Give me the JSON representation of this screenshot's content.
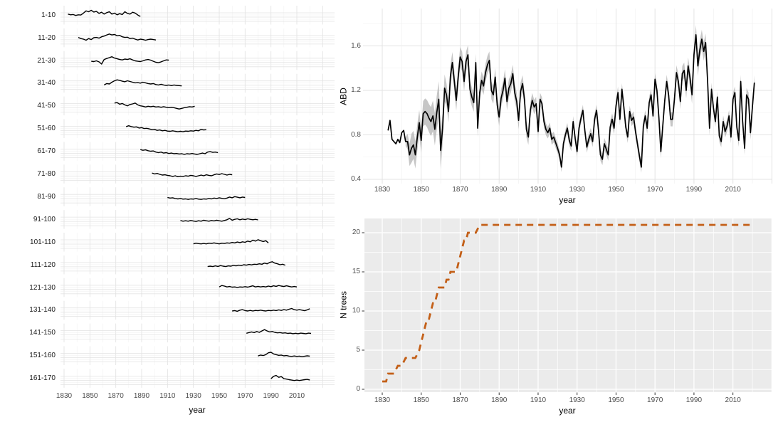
{
  "colors": {
    "background": "#FFFFFF",
    "panel_gray": "#EBEBEB",
    "grid_major_on_white": "#E3E3E3",
    "grid_minor_on_white": "#EFEFEF",
    "grid_on_gray": "#FFFFFF",
    "tick_text": "#4D4D4D",
    "axis_title_text": "#000000",
    "series_black": "#000000",
    "ribbon_gray": "#B3B3B3",
    "ntrees_orange": "#C35F17",
    "tick_mark": "#333333"
  },
  "chart_data": [
    {
      "id": "age_class_facets",
      "type": "line",
      "xlabel": "year",
      "x_ticks": [
        1830,
        1850,
        1870,
        1890,
        1910,
        1930,
        1950,
        1970,
        1990,
        2010
      ],
      "x_grid_range": [
        1830,
        2030
      ],
      "facets": [
        {
          "label": "1-10",
          "start": 1833,
          "step": 2,
          "values": [
            0.55,
            0.5,
            0.52,
            0.45,
            0.5,
            0.48,
            0.62,
            0.78,
            0.72,
            0.82,
            0.7,
            0.75,
            0.6,
            0.68,
            0.55,
            0.65,
            0.72,
            0.55,
            0.62,
            0.5,
            0.58,
            0.52,
            0.72,
            0.6,
            0.55,
            0.68,
            0.62,
            0.48,
            0.38
          ]
        },
        {
          "label": "11-20",
          "start": 1841,
          "step": 2,
          "values": [
            0.5,
            0.42,
            0.38,
            0.3,
            0.42,
            0.35,
            0.48,
            0.5,
            0.45,
            0.55,
            0.6,
            0.68,
            0.75,
            0.68,
            0.72,
            0.62,
            0.65,
            0.55,
            0.5,
            0.52,
            0.42,
            0.45,
            0.38,
            0.32,
            0.38,
            0.35,
            0.3,
            0.35,
            0.38,
            0.35,
            0.32
          ]
        },
        {
          "label": "21-30",
          "start": 1851,
          "step": 2,
          "values": [
            0.42,
            0.4,
            0.45,
            0.38,
            0.22,
            0.55,
            0.62,
            0.68,
            0.75,
            0.65,
            0.6,
            0.55,
            0.52,
            0.58,
            0.55,
            0.6,
            0.52,
            0.45,
            0.42,
            0.4,
            0.45,
            0.52,
            0.55,
            0.5,
            0.42,
            0.35,
            0.32,
            0.38,
            0.45,
            0.52,
            0.5
          ]
        },
        {
          "label": "31-40",
          "start": 1861,
          "step": 2,
          "values": [
            0.35,
            0.45,
            0.42,
            0.55,
            0.65,
            0.72,
            0.68,
            0.62,
            0.58,
            0.65,
            0.6,
            0.55,
            0.5,
            0.52,
            0.48,
            0.55,
            0.5,
            0.45,
            0.42,
            0.45,
            0.38,
            0.35,
            0.4,
            0.35,
            0.32,
            0.35,
            0.3,
            0.35,
            0.32,
            0.3,
            0.28
          ]
        },
        {
          "label": "41-50",
          "start": 1869,
          "step": 2,
          "values": [
            0.68,
            0.72,
            0.6,
            0.65,
            0.55,
            0.48,
            0.58,
            0.62,
            0.68,
            0.55,
            0.48,
            0.45,
            0.4,
            0.45,
            0.42,
            0.45,
            0.4,
            0.42,
            0.38,
            0.42,
            0.38,
            0.35,
            0.38,
            0.35,
            0.3,
            0.25,
            0.3,
            0.35,
            0.38,
            0.42,
            0.4,
            0.45
          ]
        },
        {
          "label": "51-60",
          "start": 1878,
          "step": 2,
          "values": [
            0.62,
            0.68,
            0.62,
            0.58,
            0.6,
            0.52,
            0.55,
            0.48,
            0.5,
            0.45,
            0.4,
            0.42,
            0.35,
            0.38,
            0.32,
            0.35,
            0.3,
            0.28,
            0.32,
            0.28,
            0.25,
            0.28,
            0.25,
            0.3,
            0.28,
            0.32,
            0.3,
            0.35,
            0.32,
            0.42,
            0.38,
            0.4
          ]
        },
        {
          "label": "61-70",
          "start": 1889,
          "step": 2,
          "values": [
            0.6,
            0.55,
            0.58,
            0.52,
            0.48,
            0.5,
            0.42,
            0.38,
            0.42,
            0.35,
            0.38,
            0.32,
            0.35,
            0.3,
            0.32,
            0.28,
            0.3,
            0.25,
            0.3,
            0.28,
            0.32,
            0.28,
            0.25,
            0.3,
            0.35,
            0.3,
            0.42,
            0.45,
            0.4,
            0.42,
            0.38
          ]
        },
        {
          "label": "71-80",
          "start": 1898,
          "step": 2,
          "values": [
            0.55,
            0.48,
            0.52,
            0.45,
            0.4,
            0.42,
            0.38,
            0.35,
            0.3,
            0.35,
            0.28,
            0.32,
            0.3,
            0.35,
            0.32,
            0.38,
            0.35,
            0.3,
            0.35,
            0.4,
            0.35,
            0.42,
            0.38,
            0.35,
            0.42,
            0.48,
            0.44,
            0.5,
            0.45,
            0.4,
            0.45,
            0.42
          ]
        },
        {
          "label": "81-90",
          "start": 1910,
          "step": 2,
          "values": [
            0.42,
            0.38,
            0.4,
            0.35,
            0.32,
            0.35,
            0.3,
            0.32,
            0.28,
            0.32,
            0.3,
            0.35,
            0.3,
            0.28,
            0.32,
            0.3,
            0.35,
            0.32,
            0.38,
            0.35,
            0.4,
            0.36,
            0.33,
            0.38,
            0.45,
            0.4,
            0.48,
            0.44,
            0.4,
            0.45,
            0.42
          ]
        },
        {
          "label": "91-100",
          "start": 1920,
          "step": 2,
          "values": [
            0.4,
            0.35,
            0.38,
            0.35,
            0.4,
            0.36,
            0.33,
            0.38,
            0.35,
            0.42,
            0.38,
            0.35,
            0.4,
            0.37,
            0.42,
            0.38,
            0.35,
            0.4,
            0.45,
            0.55,
            0.42,
            0.48,
            0.52,
            0.45,
            0.5,
            0.46,
            0.52,
            0.48,
            0.45,
            0.48,
            0.44
          ]
        },
        {
          "label": "101-110",
          "start": 1930,
          "step": 2,
          "values": [
            0.35,
            0.4,
            0.37,
            0.35,
            0.38,
            0.35,
            0.4,
            0.38,
            0.42,
            0.38,
            0.35,
            0.4,
            0.38,
            0.42,
            0.4,
            0.45,
            0.42,
            0.48,
            0.44,
            0.5,
            0.46,
            0.55,
            0.5,
            0.62,
            0.55,
            0.65,
            0.58,
            0.52,
            0.58,
            0.42
          ]
        },
        {
          "label": "111-120",
          "start": 1941,
          "step": 2,
          "values": [
            0.35,
            0.38,
            0.35,
            0.4,
            0.36,
            0.42,
            0.38,
            0.35,
            0.4,
            0.38,
            0.44,
            0.4,
            0.45,
            0.42,
            0.48,
            0.45,
            0.5,
            0.47,
            0.52,
            0.5,
            0.55,
            0.52,
            0.6,
            0.55,
            0.65,
            0.7,
            0.6,
            0.55,
            0.48,
            0.52,
            0.45
          ]
        },
        {
          "label": "121-130",
          "start": 1950,
          "step": 2,
          "values": [
            0.52,
            0.62,
            0.58,
            0.52,
            0.55,
            0.5,
            0.52,
            0.48,
            0.52,
            0.5,
            0.54,
            0.5,
            0.55,
            0.6,
            0.52,
            0.56,
            0.52,
            0.55,
            0.52,
            0.58,
            0.54,
            0.6,
            0.56,
            0.62,
            0.58,
            0.55,
            0.6,
            0.56,
            0.52,
            0.55,
            0.52
          ]
        },
        {
          "label": "131-140",
          "start": 1960,
          "step": 2,
          "values": [
            0.42,
            0.45,
            0.4,
            0.48,
            0.52,
            0.45,
            0.42,
            0.46,
            0.42,
            0.46,
            0.44,
            0.48,
            0.44,
            0.42,
            0.46,
            0.44,
            0.48,
            0.45,
            0.5,
            0.46,
            0.52,
            0.48,
            0.55,
            0.6,
            0.52,
            0.48,
            0.52,
            0.48,
            0.44,
            0.5,
            0.58
          ]
        },
        {
          "label": "141-150",
          "start": 1971,
          "step": 2,
          "values": [
            0.45,
            0.5,
            0.55,
            0.5,
            0.58,
            0.52,
            0.62,
            0.72,
            0.62,
            0.55,
            0.58,
            0.52,
            0.48,
            0.5,
            0.46,
            0.48,
            0.44,
            0.46,
            0.42,
            0.45,
            0.42,
            0.46,
            0.44,
            0.42,
            0.46,
            0.44
          ]
        },
        {
          "label": "151-160",
          "start": 1980,
          "step": 2,
          "values": [
            0.45,
            0.52,
            0.48,
            0.55,
            0.68,
            0.72,
            0.6,
            0.55,
            0.5,
            0.52,
            0.46,
            0.48,
            0.44,
            0.42,
            0.45,
            0.42,
            0.44,
            0.4,
            0.43,
            0.46,
            0.44
          ]
        },
        {
          "label": "161-170",
          "start": 1990,
          "step": 2,
          "values": [
            0.45,
            0.62,
            0.68,
            0.55,
            0.6,
            0.45,
            0.42,
            0.38,
            0.35,
            0.32,
            0.35,
            0.32,
            0.35,
            0.38,
            0.4,
            0.36
          ]
        }
      ]
    },
    {
      "id": "abd",
      "type": "line",
      "ylabel": "ABD",
      "xlabel": "year",
      "y_ticks": [
        0.4,
        0.8,
        1.2,
        1.6
      ],
      "y_grid_range": [
        0.4,
        1.8
      ],
      "y_range": [
        0.36,
        1.94
      ],
      "x_ticks": [
        1830,
        1850,
        1870,
        1890,
        1910,
        1930,
        1950,
        1970,
        1990,
        2010
      ],
      "x_grid_range": [
        1830,
        2030
      ],
      "series": {
        "start_year": 1833,
        "values": [
          0.84,
          0.93,
          0.76,
          0.74,
          0.72,
          0.76,
          0.73,
          0.82,
          0.84,
          0.74,
          0.74,
          0.62,
          0.68,
          0.71,
          0.62,
          0.78,
          0.91,
          0.75,
          0.99,
          1.01,
          0.99,
          0.95,
          0.92,
          0.97,
          0.85,
          1.0,
          1.12,
          0.66,
          0.86,
          1.22,
          1.16,
          1.01,
          1.33,
          1.45,
          1.28,
          1.11,
          1.32,
          1.5,
          1.46,
          1.28,
          1.46,
          1.52,
          1.21,
          1.14,
          1.09,
          1.45,
          0.86,
          1.18,
          1.29,
          1.24,
          1.36,
          1.43,
          1.47,
          1.2,
          1.16,
          1.32,
          1.07,
          0.96,
          1.13,
          1.2,
          1.31,
          1.1,
          1.22,
          1.26,
          1.35,
          1.18,
          1.1,
          0.93,
          1.19,
          1.26,
          1.12,
          0.85,
          0.78,
          1.02,
          1.11,
          1.05,
          1.08,
          0.83,
          1.12,
          1.08,
          0.92,
          0.85,
          0.82,
          0.86,
          0.76,
          0.78,
          0.73,
          0.68,
          0.62,
          0.51,
          0.72,
          0.8,
          0.86,
          0.75,
          0.7,
          0.92,
          0.77,
          0.65,
          0.86,
          0.95,
          1.02,
          0.84,
          0.69,
          0.76,
          0.81,
          0.74,
          0.94,
          1.02,
          0.84,
          0.62,
          0.58,
          0.72,
          0.67,
          0.62,
          0.87,
          0.94,
          0.86,
          1.06,
          1.18,
          0.94,
          1.21,
          1.05,
          0.87,
          0.78,
          1.01,
          0.93,
          0.96,
          0.83,
          0.72,
          0.61,
          0.51,
          0.88,
          0.97,
          0.86,
          1.09,
          1.16,
          0.97,
          1.3,
          1.2,
          0.95,
          0.65,
          0.88,
          1.11,
          1.28,
          1.16,
          0.94,
          0.94,
          1.12,
          1.36,
          1.28,
          1.1,
          1.35,
          1.38,
          1.2,
          1.42,
          1.31,
          1.16,
          1.52,
          1.7,
          1.42,
          1.56,
          1.66,
          1.55,
          1.63,
          1.28,
          0.86,
          1.21,
          1.04,
          0.92,
          1.14,
          0.79,
          0.74,
          0.92,
          0.83,
          0.88,
          0.97,
          0.78,
          1.12,
          1.18,
          0.87,
          0.75,
          1.28,
          0.92,
          0.68,
          1.16,
          1.12,
          0.82,
          1.05,
          1.27
        ]
      },
      "band_start_year": 1842,
      "band_halfwidth_keyframes": [
        [
          1833,
          0.025
        ],
        [
          1842,
          0.04
        ],
        [
          1845,
          0.13
        ],
        [
          1850,
          0.11
        ],
        [
          1855,
          0.13
        ],
        [
          1860,
          0.17
        ],
        [
          1863,
          0.1
        ],
        [
          1870,
          0.09
        ],
        [
          1880,
          0.08
        ],
        [
          1890,
          0.08
        ],
        [
          1900,
          0.08
        ],
        [
          1910,
          0.06
        ],
        [
          1920,
          0.045
        ],
        [
          1935,
          0.05
        ],
        [
          1950,
          0.055
        ],
        [
          1963,
          0.05
        ],
        [
          1975,
          0.06
        ],
        [
          1985,
          0.07
        ],
        [
          1992,
          0.09
        ],
        [
          1996,
          0.08
        ],
        [
          2000,
          0.05
        ],
        [
          2010,
          0.055
        ],
        [
          2021,
          0.065
        ]
      ]
    },
    {
      "id": "n_trees",
      "type": "step-line",
      "ylabel": "N trees",
      "xlabel": "year",
      "dashed": true,
      "y_ticks": [
        0,
        5,
        10,
        15,
        20
      ],
      "y_range": [
        -0.3,
        21.9
      ],
      "x_ticks": [
        1830,
        1850,
        1870,
        1890,
        1910,
        1930,
        1950,
        1970,
        1990,
        2010
      ],
      "x_grid_range": [
        1830,
        2030
      ],
      "points": [
        [
          1830,
          1
        ],
        [
          1832,
          1
        ],
        [
          1833,
          2
        ],
        [
          1836,
          2
        ],
        [
          1838,
          3
        ],
        [
          1840,
          3
        ],
        [
          1842,
          4
        ],
        [
          1847,
          4
        ],
        [
          1849,
          5
        ],
        [
          1850,
          6
        ],
        [
          1851,
          7
        ],
        [
          1852,
          8
        ],
        [
          1853,
          9
        ],
        [
          1854,
          9
        ],
        [
          1855,
          10
        ],
        [
          1856,
          11
        ],
        [
          1857,
          11
        ],
        [
          1858,
          12
        ],
        [
          1859,
          13
        ],
        [
          1862,
          13
        ],
        [
          1863,
          14
        ],
        [
          1864,
          14
        ],
        [
          1865,
          15
        ],
        [
          1868,
          15
        ],
        [
          1869,
          16
        ],
        [
          1870,
          17
        ],
        [
          1871,
          18
        ],
        [
          1872,
          19
        ],
        [
          1873,
          19
        ],
        [
          1874,
          20
        ],
        [
          1878,
          20
        ],
        [
          1880,
          21
        ],
        [
          2020,
          21
        ]
      ]
    }
  ]
}
